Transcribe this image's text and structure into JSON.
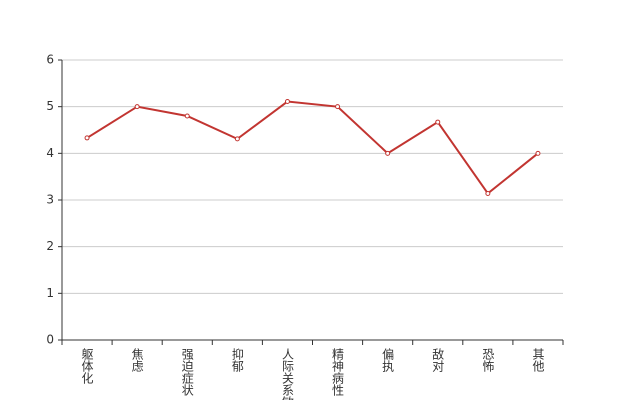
{
  "chart_data": {
    "type": "line",
    "categories": [
      "躯体化",
      "焦虑",
      "强迫症状",
      "抑郁",
      "人际关系敏感",
      "精神病性",
      "偏执",
      "敌对",
      "恐怖",
      "其他"
    ],
    "series": [
      {
        "color": "#c23531",
        "values": [
          4.33,
          5.0,
          4.8,
          4.31,
          5.11,
          5.0,
          4.0,
          4.67,
          3.14,
          4.0
        ]
      }
    ],
    "ylim": [
      0,
      6
    ],
    "yticks": [
      0,
      1,
      2,
      3,
      4,
      5,
      6
    ],
    "grid": true
  }
}
